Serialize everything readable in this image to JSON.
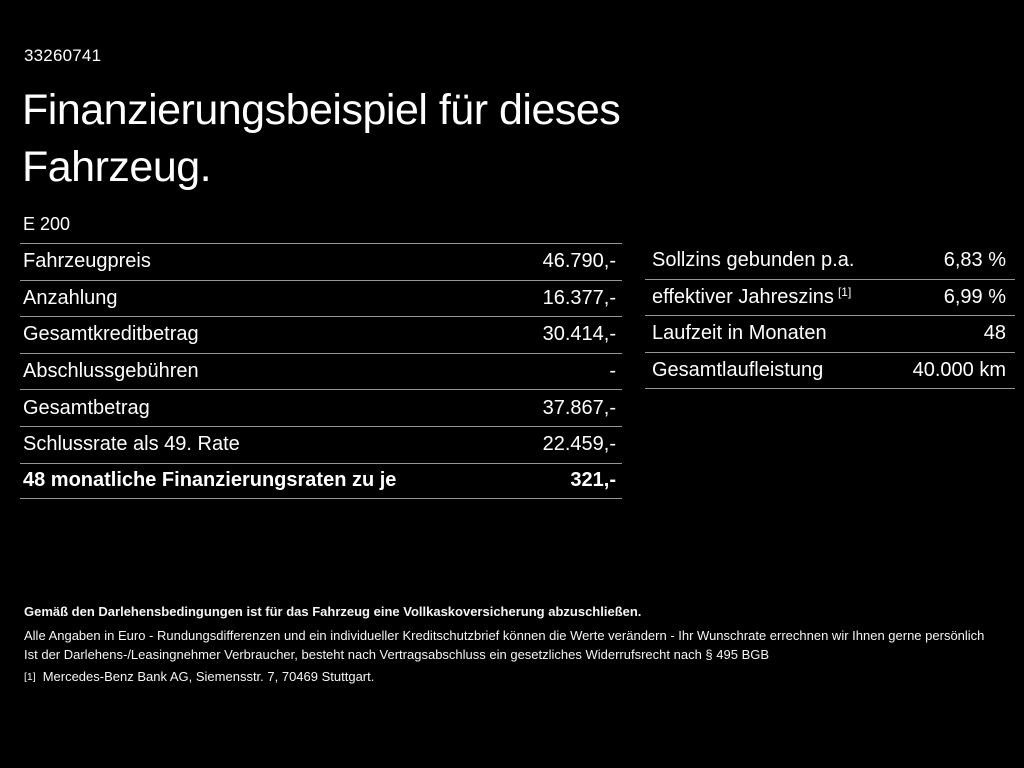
{
  "theme": {
    "background": "#000000",
    "text_color": "#ffffff",
    "line_color": "#969696"
  },
  "header": {
    "document_number": "33260741",
    "title": "Finanzierungsbeispiel für dieses Fahrzeug.",
    "vehicle_model": "E 200"
  },
  "financing": {
    "rows": [
      {
        "label": "Fahrzeugpreis",
        "value": "46.790,-"
      },
      {
        "label": "Anzahlung",
        "value": "16.377,-"
      },
      {
        "label": "Gesamtkreditbetrag",
        "value": "30.414,-"
      },
      {
        "label": "Abschlussgebühren",
        "value": "-"
      },
      {
        "label": "Gesamtbetrag",
        "value": "37.867,-"
      },
      {
        "label": "Schlussrate als 49. Rate",
        "value": "22.459,-"
      },
      {
        "label": "48 monatliche Finanzierungsraten zu je",
        "value": "321,-"
      }
    ]
  },
  "conditions": {
    "rows": [
      {
        "label": "Sollzins gebunden p.a.",
        "sup": "",
        "value": "6,83 %"
      },
      {
        "label": "effektiver Jahreszins",
        "sup": "[1]",
        "value": "6,99 %"
      },
      {
        "label": "Laufzeit in Monaten",
        "sup": "",
        "value": "48"
      },
      {
        "label": "Gesamtlaufleistung",
        "sup": "",
        "value": "40.000 km"
      }
    ]
  },
  "footer": {
    "insurance_note": "Gemäß den Darlehensbedingungen ist für das Fahrzeug eine Vollkaskoversicherung abzuschließen.",
    "values_note": "Alle Angaben in Euro - Rundungsdifferenzen und ein individueller Kreditschutzbrief können die Werte verändern - Ihr Wunschrate errechnen wir Ihnen gerne persönlich",
    "withdrawal_note": "Ist der Darlehens-/Leasingnehmer Verbraucher, besteht nach Vertragsabschluss ein gesetzliches Widerrufsrecht nach § 495 BGB",
    "footnote_marker": "[1]",
    "footnote_text": "Mercedes-Benz Bank AG, Siemensstr. 7, 70469 Stuttgart."
  }
}
